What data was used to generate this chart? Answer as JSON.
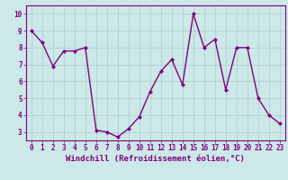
{
  "x": [
    0,
    1,
    2,
    3,
    4,
    5,
    6,
    7,
    8,
    9,
    10,
    11,
    12,
    13,
    14,
    15,
    16,
    17,
    18,
    19,
    20,
    21,
    22,
    23
  ],
  "y": [
    9,
    8.3,
    6.9,
    7.8,
    7.8,
    8.0,
    3.1,
    3.0,
    2.7,
    3.2,
    3.9,
    5.4,
    6.6,
    7.3,
    5.8,
    10.0,
    8.0,
    8.5,
    5.5,
    8.0,
    8.0,
    5.0,
    4.0,
    3.5
  ],
  "line_color": "#800080",
  "marker": "D",
  "marker_size": 2.0,
  "linewidth": 1.0,
  "xlabel": "Windchill (Refroidissement éolien,°C)",
  "xlabel_fontsize": 6.5,
  "xlim": [
    -0.5,
    23.5
  ],
  "ylim": [
    2.5,
    10.5
  ],
  "yticks": [
    3,
    4,
    5,
    6,
    7,
    8,
    9,
    10
  ],
  "xticks": [
    0,
    1,
    2,
    3,
    4,
    5,
    6,
    7,
    8,
    9,
    10,
    11,
    12,
    13,
    14,
    15,
    16,
    17,
    18,
    19,
    20,
    21,
    22,
    23
  ],
  "bg_color": "#cce8e8",
  "grid_color": "#aacccc",
  "tick_fontsize": 5.5,
  "label_color": "#800080",
  "spine_color": "#800080"
}
